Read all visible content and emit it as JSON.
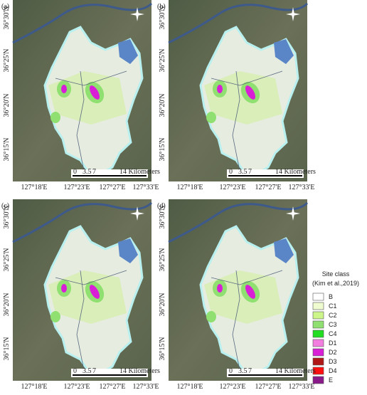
{
  "panels": [
    {
      "label": "(a)",
      "lat_labels": [
        "36°30'N",
        "36°25'N",
        "36°20'N",
        "36°15'N"
      ],
      "lon_labels": [
        "127°18'E",
        "127°23'E",
        "127°27'E",
        "127°33'E"
      ],
      "scale_labels": [
        "0",
        "3.5",
        "7",
        "14 Kilometers"
      ]
    },
    {
      "label": "(b)",
      "lat_labels": [
        "36°30'N",
        "36°25'N",
        "36°20'N",
        "36°15'N"
      ],
      "lon_labels": [
        "127°18'E",
        "127°23'E",
        "127°27'E",
        "127°33'E"
      ],
      "scale_labels": [
        "0",
        "3.5",
        "7",
        "14 Kilometers"
      ]
    },
    {
      "label": "(c)",
      "lat_labels": [
        "36°30'N",
        "36°25'N",
        "36°20'N",
        "36°15'N"
      ],
      "lon_labels": [
        "127°18'E",
        "127°23'E",
        "127°27'E",
        "127°33'E"
      ],
      "scale_labels": [
        "0",
        "3.5",
        "7",
        "14 Kilometers"
      ]
    },
    {
      "label": "(d)",
      "lat_labels": [
        "36°30'N",
        "36°25'N",
        "36°20'N",
        "36°15'N"
      ],
      "lon_labels": [
        "127°18'E",
        "127°23'E",
        "127°27'E",
        "127°33'E"
      ],
      "scale_labels": [
        "0",
        "3.5",
        "7",
        "14 Kilometers"
      ]
    }
  ],
  "legend": {
    "title": "Site class",
    "subtitle": "(Kim et al.,2019)",
    "items": [
      {
        "label": "B",
        "color": "#ffffff"
      },
      {
        "label": "C1",
        "color": "#eefccf"
      },
      {
        "label": "C2",
        "color": "#ccf58a"
      },
      {
        "label": "C3",
        "color": "#8fe070"
      },
      {
        "label": "C4",
        "color": "#22dd22"
      },
      {
        "label": "D1",
        "color": "#f27fe0"
      },
      {
        "label": "D2",
        "color": "#d81fd6"
      },
      {
        "label": "D3",
        "color": "#b01818"
      },
      {
        "label": "D4",
        "color": "#ff1010"
      },
      {
        "label": "E",
        "color": "#8a1a8a"
      }
    ]
  }
}
